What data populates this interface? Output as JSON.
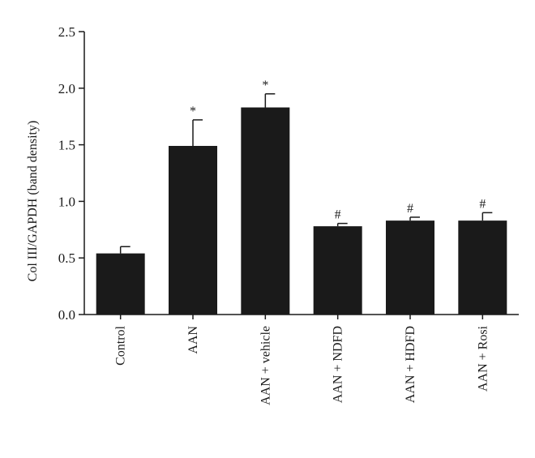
{
  "chart_data": {
    "type": "bar",
    "title": "",
    "xlabel": "",
    "ylabel": "Col III/GAPDH (band density)",
    "ylim": [
      0,
      2.5
    ],
    "yticks": [
      "0.0",
      "0.5",
      "1.0",
      "1.5",
      "2.0",
      "2.5"
    ],
    "categories": [
      "Control",
      "AAN",
      "AAN + vehicle",
      "AAN + NDFD",
      "AAN + HDFD",
      "AAN + Rosi"
    ],
    "values": [
      0.54,
      1.49,
      1.83,
      0.78,
      0.83,
      0.83
    ],
    "errors": [
      0.06,
      0.23,
      0.12,
      0.025,
      0.03,
      0.07
    ],
    "annotations": [
      "",
      "*",
      "*",
      "#",
      "#",
      "#"
    ],
    "bar_color": "#1a1a1a",
    "grid": false,
    "legend": "none"
  }
}
